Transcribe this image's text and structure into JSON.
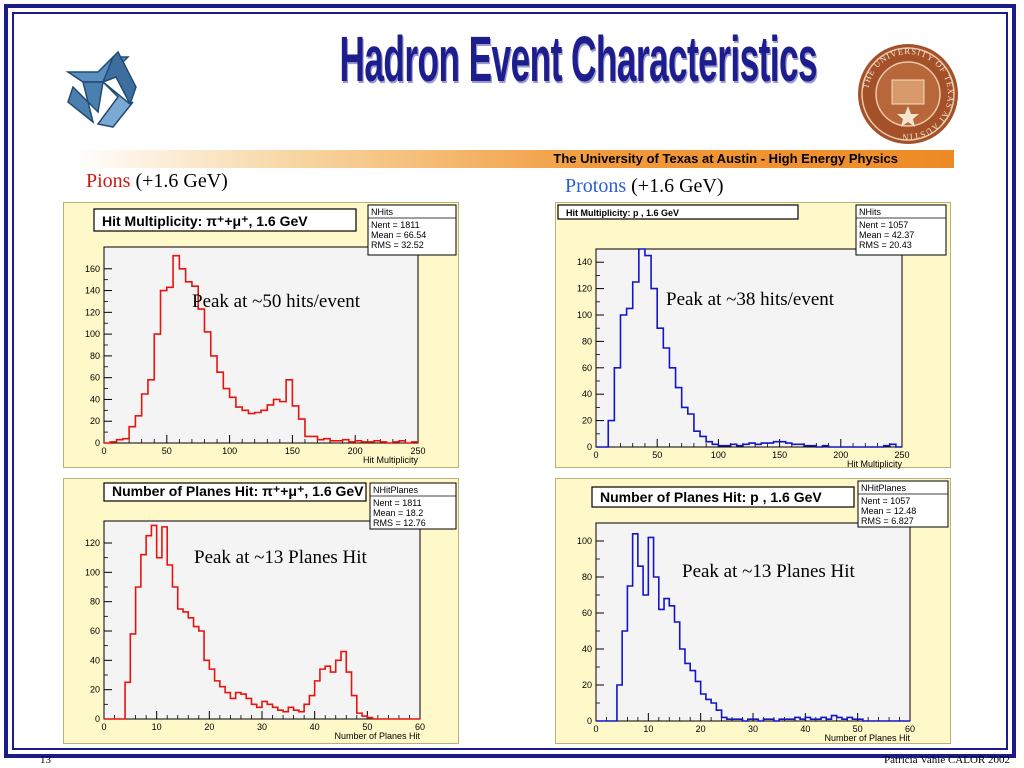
{
  "slide": {
    "title": "Hadron Event Characteristics",
    "banner": "The University of Texas at Austin  -  High Energy Physics",
    "page_number": "13",
    "footer": "Patricia Vahle CALOR 2002",
    "colors": {
      "frame": "#1b1b8a",
      "pion": "#e8130f",
      "proton": "#1414c8",
      "panel_bg": "#fff8c8"
    }
  },
  "sections": {
    "pions": {
      "name": "Pions",
      "energy": "(+1.6 GeV)",
      "color": "#cc1a0f"
    },
    "protons": {
      "name": "Protons",
      "energy": "(+1.6 GeV)",
      "color": "#2a5ed8"
    }
  },
  "seal_text": "THE UNIVERSITY OF TEXAS AT AUSTIN",
  "chart_data": [
    {
      "id": "pion-hits",
      "type": "histogram",
      "title": "Hit Multiplicity: π⁺+μ⁺, 1.6 GeV",
      "xlabel": "Hit Multiplicity",
      "xlim": [
        0,
        250
      ],
      "ylim": [
        0,
        180
      ],
      "xticks": [
        0,
        50,
        100,
        150,
        200,
        250
      ],
      "yticks": [
        0,
        20,
        40,
        60,
        80,
        100,
        120,
        140,
        160
      ],
      "bin_width": 5,
      "values": [
        0,
        1,
        3,
        4,
        15,
        25,
        45,
        58,
        100,
        140,
        143,
        172,
        160,
        148,
        144,
        123,
        102,
        80,
        65,
        50,
        42,
        33,
        30,
        27,
        28,
        30,
        35,
        40,
        38,
        58,
        34,
        22,
        6,
        6,
        3,
        4,
        2,
        2,
        3,
        1,
        2,
        1,
        1,
        2,
        1,
        0,
        1,
        2,
        0,
        1
      ],
      "color": "#e8130f",
      "stats": {
        "name": "NHits",
        "rows": [
          "Nent = 1811",
          "Mean = 66.54",
          "RMS = 32.52"
        ]
      },
      "annotation": "Peak at ~50 hits/event"
    },
    {
      "id": "proton-hits",
      "type": "histogram",
      "title": "Hit Multiplicity:  p , 1.6 GeV",
      "xlabel": "Hit Multiplicity",
      "xlim": [
        0,
        250
      ],
      "ylim": [
        0,
        150
      ],
      "xticks": [
        0,
        50,
        100,
        150,
        200,
        250
      ],
      "yticks": [
        0,
        20,
        40,
        60,
        80,
        100,
        120,
        140
      ],
      "bin_width": 5,
      "values": [
        0,
        0,
        20,
        60,
        100,
        105,
        125,
        150,
        145,
        120,
        90,
        75,
        60,
        45,
        30,
        25,
        12,
        8,
        4,
        2,
        1,
        1,
        2,
        1,
        2,
        3,
        2,
        3,
        3,
        4,
        4,
        3,
        2,
        2,
        1,
        1,
        0,
        1,
        0,
        0,
        0,
        0,
        0,
        0,
        0,
        0,
        0,
        1,
        2,
        0
      ],
      "color": "#1414c8",
      "stats": {
        "name": "NHits",
        "rows": [
          "Nent = 1057",
          "Mean = 42.37",
          "RMS = 20.43"
        ]
      },
      "annotation": "Peak at ~38 hits/event"
    },
    {
      "id": "pion-planes",
      "type": "histogram",
      "title": "Number of Planes Hit: π⁺+μ⁺, 1.6 GeV",
      "xlabel": "Number of Planes Hit",
      "xlim": [
        0,
        60
      ],
      "ylim": [
        0,
        135
      ],
      "xticks": [
        0,
        10,
        20,
        30,
        40,
        50,
        60
      ],
      "yticks": [
        0,
        20,
        40,
        60,
        80,
        100,
        120
      ],
      "bin_width": 1,
      "values": [
        0,
        0,
        0,
        0,
        25,
        58,
        90,
        112,
        125,
        132,
        110,
        131,
        105,
        90,
        75,
        73,
        69,
        63,
        60,
        40,
        34,
        26,
        22,
        18,
        14,
        18,
        17,
        14,
        10,
        8,
        12,
        10,
        8,
        6,
        5,
        8,
        6,
        5,
        10,
        16,
        26,
        34,
        36,
        32,
        40,
        46,
        32,
        16,
        4,
        2,
        1,
        0,
        0,
        0,
        0,
        0,
        0,
        0,
        0,
        0
      ],
      "color": "#e8130f",
      "stats": {
        "name": "NHitPlanes",
        "rows": [
          "Nent = 1811",
          "Mean = 18.2",
          "RMS = 12.76"
        ]
      },
      "annotation": "Peak at ~13 Planes Hit"
    },
    {
      "id": "proton-planes",
      "type": "histogram",
      "title": "Number of Planes Hit:   p , 1.6 GeV",
      "xlabel": "Number of Planes Hit",
      "xlim": [
        0,
        60
      ],
      "ylim": [
        0,
        110
      ],
      "xticks": [
        0,
        10,
        20,
        30,
        40,
        50,
        60
      ],
      "yticks": [
        0,
        20,
        40,
        60,
        80,
        100
      ],
      "bin_width": 1,
      "values": [
        0,
        0,
        0,
        0,
        20,
        50,
        75,
        104,
        86,
        70,
        102,
        80,
        62,
        68,
        64,
        55,
        40,
        32,
        28,
        22,
        15,
        12,
        10,
        6,
        2,
        1,
        1,
        1,
        0,
        1,
        1,
        0,
        1,
        1,
        0,
        1,
        1,
        1,
        2,
        1,
        2,
        1,
        1,
        2,
        1,
        3,
        2,
        1,
        2,
        1,
        1,
        0,
        0,
        0,
        0,
        0,
        0,
        0,
        0,
        0
      ],
      "color": "#1414c8",
      "stats": {
        "name": "NHitPlanes",
        "rows": [
          "Nent = 1057",
          "Mean = 12.48",
          "RMS = 6.827"
        ]
      },
      "annotation": "Peak at ~13 Planes Hit"
    }
  ]
}
